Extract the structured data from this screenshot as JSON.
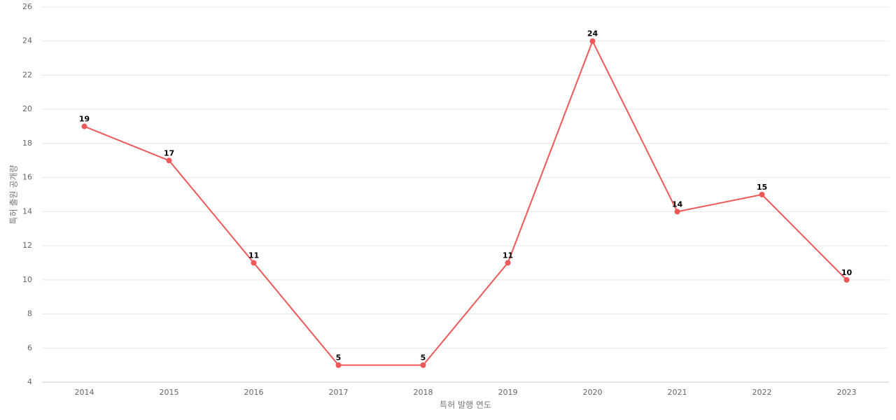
{
  "chart_data": {
    "type": "line",
    "x_label": "특허 발행 연도",
    "y_label": "특허 출원 공개량",
    "categories": [
      "2014",
      "2015",
      "2016",
      "2017",
      "2018",
      "2019",
      "2020",
      "2021",
      "2022",
      "2023"
    ],
    "values": [
      19,
      17,
      11,
      5,
      5,
      11,
      24,
      14,
      15,
      10
    ],
    "color": "#ee5858",
    "ylim": [
      4,
      26
    ],
    "yticks": [
      4,
      6,
      8,
      10,
      12,
      14,
      16,
      18,
      20,
      22,
      24,
      26
    ],
    "grid": true
  }
}
